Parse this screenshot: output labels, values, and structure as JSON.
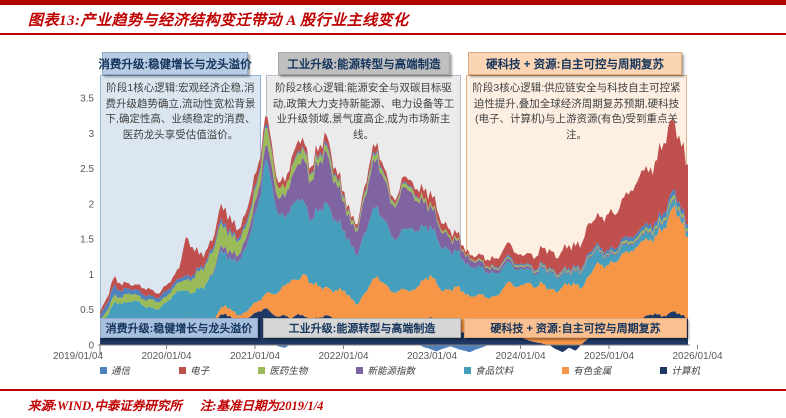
{
  "header": {
    "title": "图表13:产业趋势与经济结构变迁带动 A 股行业主线变化"
  },
  "footer": {
    "source": "来源:WIND,中泰证券研究所",
    "note": "注:基准日期为2019/1/4"
  },
  "palette": {
    "accent_red": "#C00000",
    "stage1_fill": "#DCE6F1",
    "stage1_bar": "#B8CCE4",
    "stage1_ribbon": "#A8BFDE",
    "stage2_fill": "#EBEBEB",
    "stage2_bar": "#BFBFBF",
    "stage2_ribbon": "#D6D6D6",
    "stage3_fill": "#FDF0E3",
    "stage3_bar": "#FCD5B4",
    "stage3_ribbon": "#FAC090"
  },
  "stage_boxes": [
    {
      "title": "消费升级:稳健增长与龙头溢价",
      "body": "阶段1核心逻辑:宏观经济企稳,消费升级趋势确立,流动性宽松背景下,确定性高、业绩稳定的消费、医药龙头享受估值溢价。",
      "ribbon_label": "消费升级:稳健增长与龙头溢价"
    },
    {
      "title": "工业升级:能源转型与高端制造",
      "body": "阶段2核心逻辑:能源安全与双碳目标驱动,政策大力支持新能源、电力设备等工业升级领域,景气度高企,成为市场新主线。",
      "ribbon_label": "工业升级:能源转型与高端制造"
    },
    {
      "title": "硬科技 + 资源:自主可控与周期复苏",
      "body": "阶段3核心逻辑:供应链安全与科技自主可控紧迫性提升,叠加全球经济周期复苏预期,硬科技(电子、计算机)与上游资源(有色)受到重点关注。",
      "ribbon_label": "硬科技 + 资源:自主可控与周期复苏"
    }
  ],
  "chart_data": {
    "type": "area",
    "stacked": true,
    "title": "",
    "xlabel": "",
    "ylabel": "",
    "ylim": [
      0,
      3.5
    ],
    "y_ticks": [
      0,
      0.5,
      1,
      1.5,
      2,
      2.5,
      3,
      3.5
    ],
    "x_start": "2019/01/04",
    "x_step": "monthly",
    "x_tick_labels": [
      "2019/01/04",
      "2020/01/04",
      "2021/01/04",
      "2022/01/04",
      "2023/01/04",
      "2024/01/04",
      "2025/01/04",
      "2026/01/04"
    ],
    "grid": false,
    "legend_position": "bottom",
    "legend": [
      {
        "label": "通信",
        "color": "#4F81BD"
      },
      {
        "label": "电子",
        "color": "#C0504D"
      },
      {
        "label": "医药生物",
        "color": "#9BBB59"
      },
      {
        "label": "新能源指数",
        "color": "#8064A2"
      },
      {
        "label": "食品饮料",
        "color": "#459FBC"
      },
      {
        "label": "有色金属",
        "color": "#F79646"
      },
      {
        "label": "计算机",
        "color": "#1F3864"
      }
    ],
    "series": [
      {
        "key": "jisuanji",
        "name": "计算机",
        "color": "#1F3864",
        "values": [
          0.12,
          0.18,
          0.28,
          0.32,
          0.25,
          0.2,
          0.22,
          0.18,
          0.16,
          0.2,
          0.24,
          0.28,
          0.3,
          0.38,
          0.3,
          0.26,
          0.24,
          0.28,
          0.4,
          0.45,
          0.38,
          0.34,
          0.36,
          0.42,
          0.48,
          0.52,
          0.45,
          0.4,
          0.42,
          0.38,
          0.44,
          0.4,
          0.36,
          0.38,
          0.42,
          0.4,
          0.35,
          0.3,
          0.25,
          0.22,
          0.28,
          0.32,
          0.38,
          0.35,
          0.3,
          0.26,
          0.24,
          0.28,
          0.32,
          0.36,
          0.4,
          0.34,
          0.28,
          0.24,
          0.2,
          0.18,
          0.16,
          0.14,
          0.12,
          0.1,
          0.12,
          0.15,
          0.18,
          0.14,
          0.1,
          0.06,
          0.04,
          0.02,
          0.0,
          -0.06,
          -0.1,
          -0.04,
          -0.08,
          0.02,
          0.1,
          0.18,
          0.24,
          0.28,
          0.25,
          0.3,
          0.35,
          0.32,
          0.38,
          0.42,
          0.45,
          0.4,
          0.44,
          0.48,
          0.42,
          0.38
        ]
      },
      {
        "key": "youse",
        "name": "有色金属",
        "color": "#F79646",
        "values": [
          0.0,
          0.0,
          0.0,
          0.0,
          0.0,
          0.0,
          0.02,
          0.02,
          0.01,
          0.01,
          0.02,
          0.02,
          0.02,
          0.01,
          0.02,
          0.03,
          0.04,
          0.05,
          0.08,
          0.12,
          0.1,
          0.08,
          0.1,
          0.14,
          0.15,
          0.2,
          0.28,
          0.35,
          0.42,
          0.55,
          0.48,
          0.6,
          0.52,
          0.45,
          0.4,
          0.38,
          0.42,
          0.48,
          0.4,
          0.35,
          0.45,
          0.55,
          0.6,
          0.52,
          0.46,
          0.5,
          0.55,
          0.48,
          0.5,
          0.55,
          0.6,
          0.52,
          0.48,
          0.55,
          0.62,
          0.58,
          0.52,
          0.56,
          0.6,
          0.55,
          0.58,
          0.65,
          0.72,
          0.68,
          0.75,
          0.82,
          0.78,
          0.85,
          0.8,
          0.75,
          0.82,
          0.88,
          0.85,
          0.8,
          0.88,
          0.95,
          0.9,
          0.85,
          0.92,
          1.0,
          0.95,
          1.05,
          1.1,
          1.05,
          1.1,
          1.2,
          1.35,
          1.5,
          1.3,
          1.15
        ]
      },
      {
        "key": "shipin",
        "name": "食品饮料",
        "color": "#459FBC",
        "values": [
          0.15,
          0.22,
          0.3,
          0.28,
          0.35,
          0.42,
          0.38,
          0.32,
          0.36,
          0.3,
          0.34,
          0.4,
          0.45,
          0.38,
          0.42,
          0.5,
          0.58,
          0.65,
          0.8,
          0.75,
          0.7,
          0.78,
          0.9,
          1.1,
          1.4,
          1.9,
          1.55,
          1.1,
          0.95,
          1.05,
          1.15,
          1.0,
          0.9,
          1.05,
          1.2,
          1.1,
          0.95,
          0.85,
          0.75,
          0.7,
          0.85,
          0.95,
          1.0,
          0.9,
          0.8,
          0.75,
          0.85,
          0.9,
          0.8,
          0.75,
          0.7,
          0.65,
          0.6,
          0.55,
          0.5,
          0.45,
          0.42,
          0.4,
          0.38,
          0.35,
          0.32,
          0.3,
          0.28,
          0.25,
          0.22,
          0.2,
          0.18,
          0.22,
          0.25,
          0.2,
          0.18,
          0.15,
          0.18,
          0.22,
          0.25,
          0.2,
          0.15,
          0.12,
          0.1,
          0.12,
          0.1,
          0.08,
          0.08,
          0.1,
          0.08,
          0.08,
          0.1,
          0.08,
          0.06,
          0.06
        ]
      },
      {
        "key": "xinnengyuan",
        "name": "新能源指数",
        "color": "#8064A2",
        "values": [
          0.0,
          0.0,
          0.0,
          0.0,
          0.0,
          0.0,
          0.0,
          0.0,
          0.0,
          0.0,
          0.0,
          0.0,
          0.0,
          0.0,
          0.0,
          0.0,
          0.0,
          0.02,
          0.05,
          0.08,
          0.1,
          0.08,
          0.12,
          0.15,
          0.18,
          0.2,
          0.25,
          0.22,
          0.3,
          0.4,
          0.5,
          0.6,
          0.55,
          0.65,
          0.75,
          0.6,
          0.5,
          0.4,
          0.3,
          0.35,
          0.5,
          0.62,
          0.68,
          0.58,
          0.45,
          0.5,
          0.6,
          0.52,
          0.42,
          0.35,
          0.3,
          0.25,
          0.22,
          0.18,
          0.15,
          0.12,
          0.1,
          0.08,
          0.08,
          0.06,
          0.05,
          0.05,
          0.04,
          0.04,
          0.03,
          0.03,
          0.03,
          0.02,
          0.02,
          0.02,
          0.02,
          0.02,
          0.02,
          0.02,
          0.02,
          0.02,
          0.02,
          0.02,
          0.02,
          0.02,
          0.02,
          0.02,
          0.02,
          0.02,
          0.02,
          0.02,
          0.02,
          0.02,
          0.02,
          0.02
        ]
      },
      {
        "key": "yiyao",
        "name": "医药生物",
        "color": "#9BBB59",
        "values": [
          0.06,
          0.08,
          0.1,
          0.08,
          0.12,
          0.1,
          0.08,
          0.1,
          0.12,
          0.1,
          0.08,
          0.1,
          0.12,
          0.15,
          0.2,
          0.25,
          0.28,
          0.3,
          0.32,
          0.28,
          0.24,
          0.2,
          0.18,
          0.16,
          0.18,
          0.25,
          0.2,
          0.15,
          0.12,
          0.14,
          0.16,
          0.12,
          0.1,
          0.08,
          0.08,
          0.1,
          0.08,
          0.06,
          0.05,
          0.04,
          0.06,
          0.08,
          0.08,
          0.06,
          0.05,
          0.04,
          0.05,
          0.06,
          0.05,
          0.05,
          0.04,
          0.04,
          0.03,
          0.03,
          0.03,
          0.02,
          0.02,
          0.02,
          0.02,
          0.02,
          0.02,
          0.02,
          0.02,
          0.02,
          0.02,
          0.02,
          0.02,
          0.02,
          0.02,
          0.02,
          0.02,
          0.02,
          0.02,
          0.02,
          0.02,
          0.02,
          0.02,
          0.02,
          0.02,
          0.03,
          0.03,
          0.03,
          0.04,
          0.04,
          0.04,
          0.04,
          0.05,
          0.05,
          0.04,
          0.04
        ]
      },
      {
        "key": "tongxin",
        "name": "通信",
        "color": "#4F81BD",
        "values": [
          0.08,
          0.1,
          0.14,
          0.1,
          0.08,
          0.06,
          0.08,
          0.06,
          0.05,
          0.06,
          0.08,
          0.06,
          0.05,
          0.06,
          0.05,
          0.04,
          0.04,
          0.05,
          0.06,
          0.05,
          0.04,
          0.04,
          0.05,
          0.05,
          0.04,
          0.05,
          0.03,
          -0.02,
          -0.04,
          0.02,
          0.03,
          0.02,
          0.02,
          0.03,
          0.04,
          0.03,
          0.02,
          0.02,
          0.01,
          0.01,
          0.02,
          0.03,
          0.03,
          0.02,
          0.01,
          0.01,
          0.02,
          0.02,
          0.02,
          -0.03,
          -0.06,
          -0.09,
          -0.05,
          -0.02,
          -0.05,
          -0.08,
          -0.1,
          -0.06,
          -0.03,
          0.01,
          0.02,
          0.02,
          0.03,
          0.02,
          0.02,
          0.02,
          0.02,
          0.02,
          0.02,
          0.02,
          0.02,
          0.03,
          0.03,
          0.03,
          0.04,
          0.04,
          0.04,
          0.05,
          0.05,
          0.05,
          0.06,
          0.06,
          0.06,
          0.06,
          0.06,
          0.07,
          0.08,
          0.08,
          0.07,
          0.06
        ]
      },
      {
        "key": "dianzi",
        "name": "电子",
        "color": "#C0504D",
        "values": [
          0.05,
          0.08,
          0.12,
          0.1,
          0.08,
          0.06,
          0.08,
          0.1,
          0.08,
          0.06,
          0.08,
          0.1,
          0.15,
          0.55,
          0.4,
          0.2,
          0.15,
          0.12,
          0.18,
          0.22,
          0.16,
          0.12,
          0.14,
          0.18,
          0.15,
          0.12,
          0.1,
          0.08,
          0.1,
          0.12,
          0.14,
          0.1,
          0.08,
          0.1,
          0.12,
          0.1,
          0.08,
          0.06,
          0.05,
          0.05,
          0.08,
          0.1,
          0.1,
          0.08,
          0.06,
          0.05,
          0.08,
          0.08,
          0.1,
          0.12,
          0.15,
          0.12,
          0.1,
          0.08,
          0.08,
          0.06,
          0.05,
          0.06,
          0.08,
          0.1,
          0.12,
          0.15,
          0.18,
          0.15,
          0.12,
          0.15,
          0.18,
          0.22,
          0.25,
          0.22,
          0.28,
          0.32,
          0.3,
          0.35,
          0.42,
          0.38,
          0.45,
          0.52,
          0.48,
          0.55,
          0.62,
          0.7,
          0.8,
          0.75,
          0.85,
          0.95,
          1.05,
          0.95,
          0.9,
          0.85
        ]
      }
    ]
  }
}
